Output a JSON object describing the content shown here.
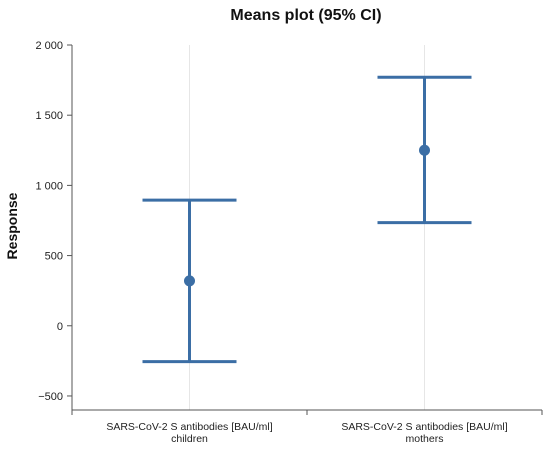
{
  "chart_data": {
    "type": "errorbar",
    "title": "Means plot (95% CI)",
    "xlabel": "",
    "ylabel": "Response",
    "ylim": [
      -600,
      2000
    ],
    "yticks": [
      -500,
      0,
      500,
      1000,
      1500,
      2000
    ],
    "ytick_labels": [
      "−500",
      "0",
      "500",
      "1 000",
      "1 500",
      "2 000"
    ],
    "grid": "vertical",
    "legend": "none",
    "categories": [
      {
        "line1": "SARS-CoV-2 S antibodies [BAU/ml]",
        "line2": "children"
      },
      {
        "line1": "SARS-CoV-2 S antibodies [BAU/ml]",
        "line2": "mothers"
      }
    ],
    "means": [
      320,
      1250
    ],
    "ci_lower": [
      -255,
      735
    ],
    "ci_upper": [
      895,
      1770
    ],
    "color": "#3b6ea5"
  }
}
